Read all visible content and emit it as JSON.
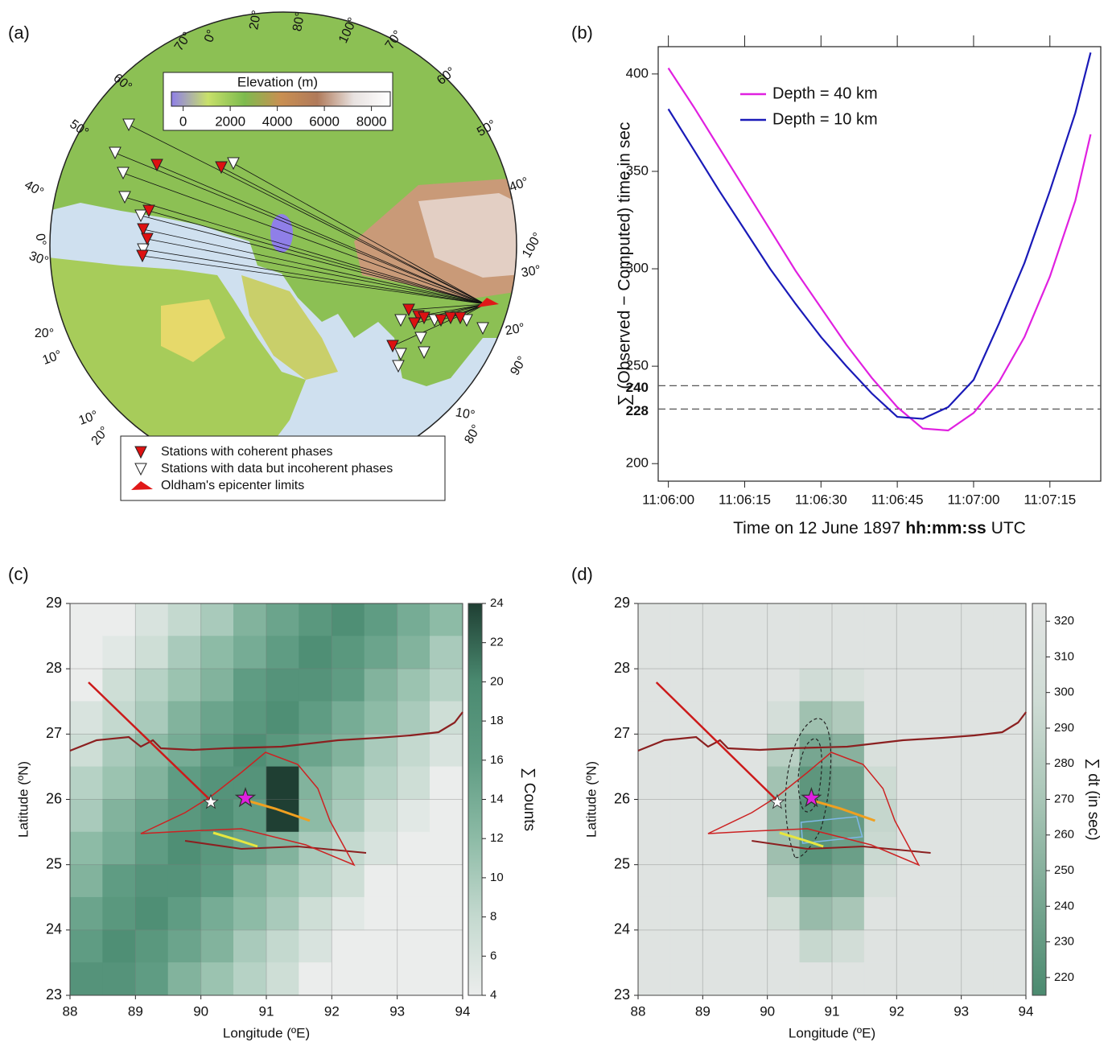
{
  "chart_data": [
    {
      "type": "map",
      "panel_label": "(a)",
      "colorbar": {
        "title": "Elevation (m)",
        "lim": [
          -500,
          8800
        ],
        "ticks": [
          0,
          2000,
          4000,
          6000,
          8000
        ],
        "colors": [
          "#8f7fe8",
          "#c8e06a",
          "#7dbb4e",
          "#c98f52",
          "#b07a5a",
          "#e8e2e0",
          "#ffffff"
        ]
      },
      "legend": [
        "Stations with coherent phases",
        "Stations with data but incoherent phases",
        "Oldham's epicenter limits"
      ],
      "graticule_labels": [
        "70°",
        "0°",
        "20°",
        "80°",
        "100°",
        "70°",
        "60°",
        "60°",
        "50°",
        "50°",
        "40°",
        "40°",
        "0°",
        "100°",
        "30°",
        "30°",
        "20°",
        "20°",
        "10°",
        "90°",
        "10°",
        "10°",
        "20°",
        "80°"
      ]
    },
    {
      "type": "line",
      "panel_label": "(b)",
      "xlabel_parts": [
        "Time on  12 June 1897",
        "hh:mm:ss",
        "UTC"
      ],
      "ylabel": "∑ (Observed − Computed) time in sec",
      "x": [
        "11:06:00",
        "11:06:05",
        "11:06:10",
        "11:06:15",
        "11:06:20",
        "11:06:25",
        "11:06:30",
        "11:06:35",
        "11:06:40",
        "11:06:45",
        "11:06:50",
        "11:06:55",
        "11:07:00",
        "11:07:05",
        "11:07:10",
        "11:07:15",
        "11:07:20",
        "11:07:23"
      ],
      "series": [
        {
          "name": "Depth = 40 km",
          "color": "#e020e0",
          "values": [
            403,
            383,
            362,
            341,
            320,
            299,
            280,
            261,
            244,
            229,
            218,
            217,
            226,
            242,
            265,
            296,
            335,
            369
          ]
        },
        {
          "name": "Depth = 10 km",
          "color": "#1a1ab8",
          "values": [
            382,
            361,
            340,
            320,
            300,
            282,
            265,
            250,
            236,
            224,
            223,
            229,
            243,
            272,
            303,
            340,
            380,
            411
          ]
        }
      ],
      "xlim": [
        "11:05:58",
        "11:07:25"
      ],
      "xticks": [
        "11:06:00",
        "11:06:15",
        "11:06:30",
        "11:06:45",
        "11:07:00",
        "11:07:15"
      ],
      "ylim": [
        191,
        414
      ],
      "yticks": [
        200,
        250,
        300,
        350,
        400
      ],
      "hlines": [
        240,
        228
      ],
      "legend": "upper left"
    },
    {
      "type": "heatmap",
      "panel_label": "(c)",
      "xlabel": "Longitude (ºE)",
      "ylabel": "Latitude (ºN)",
      "xlim": [
        88,
        94
      ],
      "ylim": [
        23,
        29
      ],
      "xticks": [
        88,
        89,
        90,
        91,
        92,
        93,
        94
      ],
      "yticks": [
        23,
        24,
        25,
        26,
        27,
        28,
        29
      ],
      "grid": true,
      "z": [
        [
          4,
          4,
          6,
          8,
          10,
          13,
          15,
          17,
          19,
          16,
          14,
          12
        ],
        [
          4,
          5,
          7,
          10,
          12,
          14,
          16,
          19,
          17,
          15,
          13,
          10
        ],
        [
          4,
          7,
          9,
          11,
          13,
          16,
          18,
          18,
          16,
          13,
          11,
          9
        ],
        [
          6,
          8,
          10,
          13,
          15,
          17,
          19,
          16,
          14,
          12,
          10,
          7
        ],
        [
          7,
          10,
          12,
          14,
          16,
          19,
          17,
          15,
          13,
          10,
          8,
          6
        ],
        [
          9,
          11,
          13,
          16,
          18,
          18,
          24,
          13,
          11,
          9,
          7,
          4
        ],
        [
          10,
          13,
          15,
          17,
          19,
          16,
          24,
          12,
          10,
          7,
          5,
          4
        ],
        [
          12,
          14,
          16,
          19,
          17,
          15,
          13,
          10,
          8,
          6,
          4,
          4
        ],
        [
          13,
          16,
          18,
          18,
          16,
          13,
          11,
          9,
          7,
          4,
          4,
          4
        ],
        [
          15,
          17,
          19,
          16,
          14,
          12,
          10,
          7,
          5,
          4,
          4,
          4
        ],
        [
          16,
          19,
          17,
          15,
          13,
          10,
          8,
          6,
          4,
          4,
          4,
          4
        ],
        [
          18,
          18,
          16,
          13,
          11,
          9,
          7,
          4,
          4,
          4,
          4,
          4
        ]
      ],
      "colorbar": {
        "label": "∑ Counts",
        "lim": [
          4,
          24
        ],
        "ticks": [
          4,
          6,
          8,
          10,
          12,
          14,
          16,
          18,
          20,
          22,
          24
        ],
        "colors": [
          "#ebedec",
          "#c4d9cf",
          "#8dbba6",
          "#5f9c83",
          "#4a8a70",
          "#1f3f33"
        ]
      }
    },
    {
      "type": "heatmap",
      "panel_label": "(d)",
      "xlabel": "Longitude (ºE)",
      "ylabel": "Latitude (ºN)",
      "xlim": [
        88,
        94
      ],
      "ylim": [
        23,
        29
      ],
      "xticks": [
        88,
        89,
        90,
        91,
        92,
        93,
        94
      ],
      "yticks": [
        23,
        24,
        25,
        26,
        27,
        28,
        29
      ],
      "grid": true,
      "z": [
        [
          320,
          320,
          320,
          320,
          320,
          320,
          320,
          320,
          320,
          320,
          320,
          320
        ],
        [
          320,
          320,
          320,
          320,
          320,
          320,
          320,
          320,
          320,
          320,
          320,
          320
        ],
        [
          320,
          320,
          320,
          320,
          320,
          299,
          309,
          320,
          320,
          320,
          320,
          320
        ],
        [
          320,
          320,
          320,
          320,
          305,
          265,
          275,
          320,
          320,
          320,
          320,
          320
        ],
        [
          320,
          320,
          320,
          320,
          281,
          241,
          251,
          311,
          320,
          320,
          320,
          320
        ],
        [
          320,
          320,
          320,
          320,
          266,
          226,
          236,
          296,
          320,
          320,
          320,
          320
        ],
        [
          320,
          320,
          320,
          320,
          260,
          220,
          230,
          290,
          320,
          320,
          320,
          320
        ],
        [
          320,
          320,
          320,
          320,
          264,
          224,
          234,
          294,
          320,
          320,
          320,
          320
        ],
        [
          320,
          320,
          320,
          320,
          277,
          237,
          247,
          307,
          320,
          320,
          320,
          320
        ],
        [
          320,
          320,
          320,
          320,
          300,
          260,
          270,
          320,
          320,
          320,
          320,
          320
        ],
        [
          320,
          320,
          320,
          320,
          320,
          292,
          302,
          320,
          320,
          320,
          320,
          320
        ],
        [
          320,
          320,
          320,
          320,
          320,
          320,
          320,
          320,
          320,
          320,
          320,
          320
        ]
      ],
      "colorbar": {
        "label": "∑ dt (in sec)",
        "lim": [
          215,
          325
        ],
        "ticks": [
          220,
          230,
          240,
          250,
          260,
          270,
          280,
          290,
          300,
          310,
          320
        ],
        "colors": [
          "#4b8a6f",
          "#7aa893",
          "#a9c6b7",
          "#cfdcd5",
          "#e3e5e4"
        ]
      }
    }
  ]
}
